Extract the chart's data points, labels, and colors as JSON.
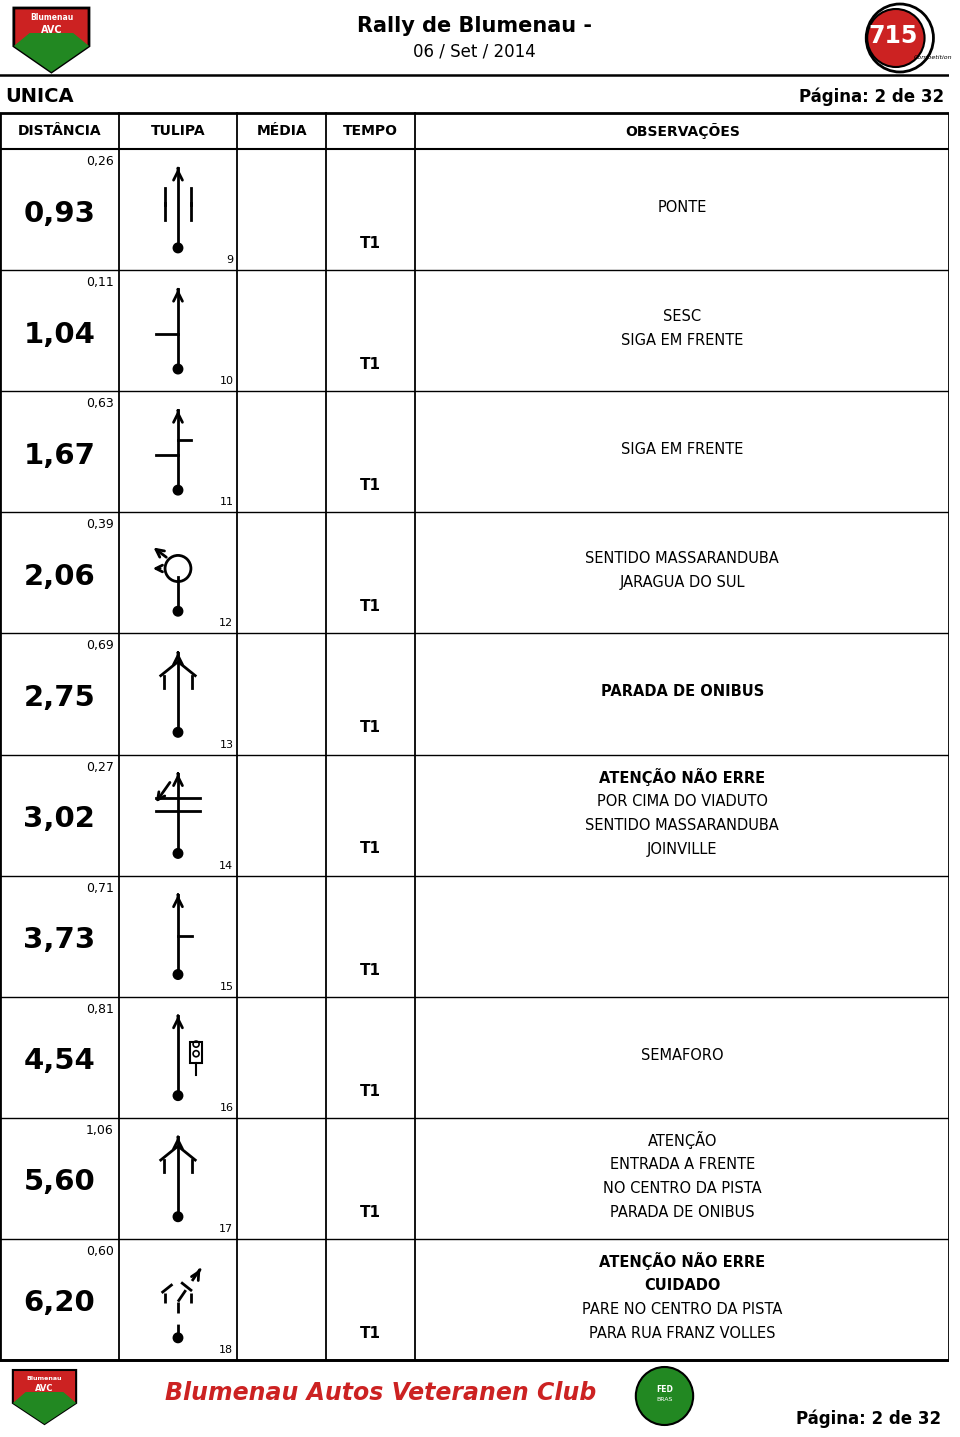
{
  "title_line1": "Rally de Blumenau -",
  "title_line2": "06 / Set / 2014",
  "page_label": "UNICA",
  "page_number": "Página: 2 de 32",
  "col_headers": [
    "DISTÂNCIA",
    "TULIPA",
    "MÉDIA",
    "TEMPO",
    "OBSERVAÇÕES"
  ],
  "rows": [
    {
      "dist_small": "0,26",
      "dist_large": "0,93",
      "tulipa_num": "9",
      "tempo": "T1",
      "obs": [
        "PONTE"
      ],
      "obs_bold": []
    },
    {
      "dist_small": "0,11",
      "dist_large": "1,04",
      "tulipa_num": "10",
      "tempo": "T1",
      "obs": [
        "SESC",
        "SIGA EM FRENTE"
      ],
      "obs_bold": []
    },
    {
      "dist_small": "0,63",
      "dist_large": "1,67",
      "tulipa_num": "11",
      "tempo": "T1",
      "obs": [
        "SIGA EM FRENTE"
      ],
      "obs_bold": []
    },
    {
      "dist_small": "0,39",
      "dist_large": "2,06",
      "tulipa_num": "12",
      "tempo": "T1",
      "obs": [
        "SENTIDO MASSARANDUBA",
        "JARAGUA DO SUL"
      ],
      "obs_bold": []
    },
    {
      "dist_small": "0,69",
      "dist_large": "2,75",
      "tulipa_num": "13",
      "tempo": "T1",
      "obs": [
        "PARADA DE ONIBUS"
      ],
      "obs_bold": [
        "PARADA DE ONIBUS"
      ]
    },
    {
      "dist_small": "0,27",
      "dist_large": "3,02",
      "tulipa_num": "14",
      "tempo": "T1",
      "obs": [
        "ATENÇÃO NÃO ERRE",
        "POR CIMA DO VIADUTO",
        "SENTIDO MASSARANDUBA",
        "JOINVILLE"
      ],
      "obs_bold": [
        "ATENÇÃO NÃO ERRE"
      ]
    },
    {
      "dist_small": "0,71",
      "dist_large": "3,73",
      "tulipa_num": "15",
      "tempo": "T1",
      "obs": [],
      "obs_bold": []
    },
    {
      "dist_small": "0,81",
      "dist_large": "4,54",
      "tulipa_num": "16",
      "tempo": "T1",
      "obs": [
        "SEMAFORO"
      ],
      "obs_bold": []
    },
    {
      "dist_small": "1,06",
      "dist_large": "5,60",
      "tulipa_num": "17",
      "tempo": "T1",
      "obs": [
        "ATENÇÃO",
        "ENTRADA A FRENTE",
        "NO CENTRO DA PISTA",
        "PARADA DE ONIBUS"
      ],
      "obs_bold": []
    },
    {
      "dist_small": "0,60",
      "dist_large": "6,20",
      "tulipa_num": "18",
      "tempo": "T1",
      "obs": [
        "ATENÇÃO NÃO ERRE",
        "CUIDADO",
        "PARE NO CENTRO DA PISTA",
        "PARA RUA FRANZ VOLLES"
      ],
      "obs_bold": [
        "ATENÇÃO NÃO ERRE",
        "CUIDADO"
      ]
    }
  ],
  "footer_text": "Blumenau Autos Veteranen Club",
  "bg_color": "#ffffff",
  "border_color": "#000000"
}
